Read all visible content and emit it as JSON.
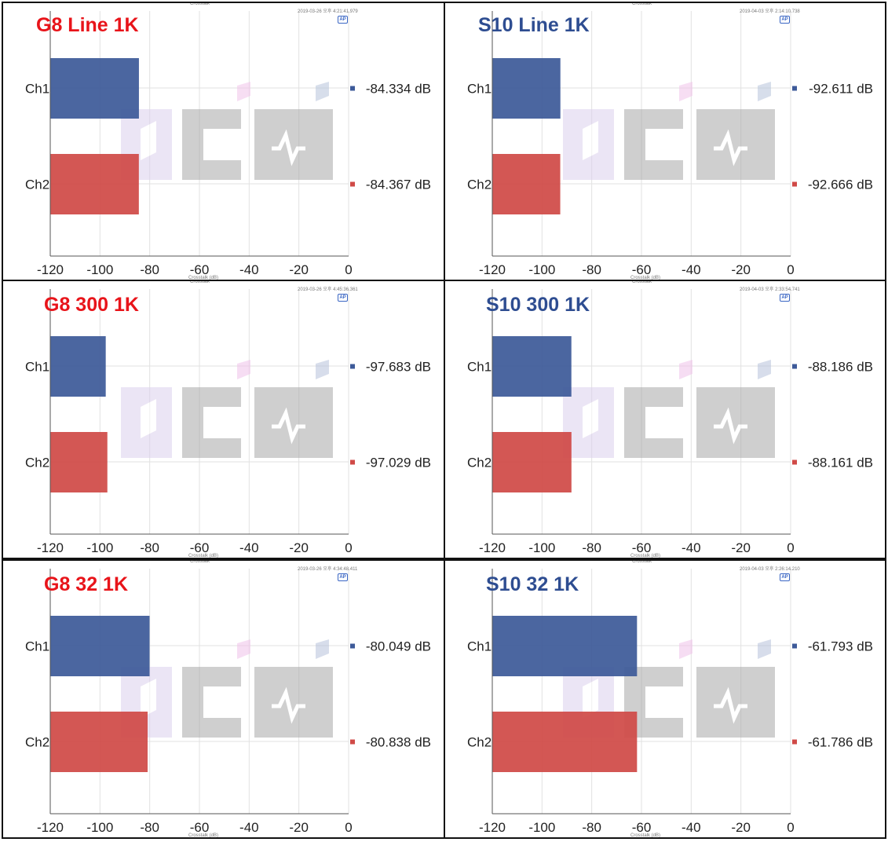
{
  "chart_data": [
    {
      "type": "bar",
      "title": "G8 Line 1K",
      "title_color": "#e8141a",
      "header_small": "Crosstalk",
      "timestamp": "2019-03-26 오후 4:21:41.979",
      "xlabel": "Crosstalk (dB)",
      "xlim": [
        -120,
        0
      ],
      "xticks": [
        -120,
        -100,
        -80,
        -60,
        -40,
        -20,
        0
      ],
      "categories": [
        "Ch1",
        "Ch2"
      ],
      "values": [
        -84.334,
        -84.367
      ],
      "value_labels": [
        "-84.334 dB",
        "-84.367 dB"
      ],
      "colors": [
        "#3d5a99",
        "#d04a47"
      ]
    },
    {
      "type": "bar",
      "title": "S10 Line 1K",
      "title_color": "#2e4d91",
      "header_small": "Crosstalk",
      "timestamp": "2019-04-03 오후 2:14:10.738",
      "xlabel": "Crosstalk (dB)",
      "xlim": [
        -120,
        0
      ],
      "xticks": [
        -120,
        -100,
        -80,
        -60,
        -40,
        -20,
        0
      ],
      "categories": [
        "Ch1",
        "Ch2"
      ],
      "values": [
        -92.611,
        -92.666
      ],
      "value_labels": [
        "-92.611 dB",
        "-92.666 dB"
      ],
      "colors": [
        "#3d5a99",
        "#d04a47"
      ]
    },
    {
      "type": "bar",
      "title": "G8 300 1K",
      "title_color": "#e8141a",
      "header_small": "Crosstalk",
      "timestamp": "2019-03-26 오후 4:45:36.361",
      "xlabel": "Crosstalk (dB)",
      "xlim": [
        -120,
        0
      ],
      "xticks": [
        -120,
        -100,
        -80,
        -60,
        -40,
        -20,
        0
      ],
      "categories": [
        "Ch1",
        "Ch2"
      ],
      "values": [
        -97.683,
        -97.029
      ],
      "value_labels": [
        "-97.683 dB",
        "-97.029 dB"
      ],
      "colors": [
        "#3d5a99",
        "#d04a47"
      ]
    },
    {
      "type": "bar",
      "title": "S10 300 1K",
      "title_color": "#2e4d91",
      "header_small": "Crosstalk",
      "timestamp": "2019-04-03 오후 2:33:54.741",
      "xlabel": "Crosstalk (dB)",
      "xlim": [
        -120,
        0
      ],
      "xticks": [
        -120,
        -100,
        -80,
        -60,
        -40,
        -20,
        0
      ],
      "categories": [
        "Ch1",
        "Ch2"
      ],
      "values": [
        -88.186,
        -88.161
      ],
      "value_labels": [
        "-88.186 dB",
        "-88.161 dB"
      ],
      "colors": [
        "#3d5a99",
        "#d04a47"
      ]
    },
    {
      "type": "bar",
      "title": "G8 32 1K",
      "title_color": "#e8141a",
      "header_small": "Crosstalk",
      "timestamp": "2019-03-26 오후 4:34:48.411",
      "xlabel": "Crosstalk (dB)",
      "xlim": [
        -120,
        0
      ],
      "xticks": [
        -120,
        -100,
        -80,
        -60,
        -40,
        -20,
        0
      ],
      "categories": [
        "Ch1",
        "Ch2"
      ],
      "values": [
        -80.049,
        -80.838
      ],
      "value_labels": [
        "-80.049 dB",
        "-80.838 dB"
      ],
      "colors": [
        "#3d5a99",
        "#d04a47"
      ]
    },
    {
      "type": "bar",
      "title": "S10 32 1K",
      "title_color": "#2e4d91",
      "header_small": "Crosstalk",
      "timestamp": "2019-04-03 오후 2:26:14.210",
      "xlabel": "Crosstalk (dB)",
      "xlim": [
        -120,
        0
      ],
      "xticks": [
        -120,
        -100,
        -80,
        -60,
        -40,
        -20,
        0
      ],
      "categories": [
        "Ch1",
        "Ch2"
      ],
      "values": [
        -61.793,
        -61.786
      ],
      "value_labels": [
        "-61.793 dB",
        "-61.786 dB"
      ],
      "colors": [
        "#3d5a99",
        "#d04a47"
      ]
    }
  ],
  "logo_badge": "AP"
}
